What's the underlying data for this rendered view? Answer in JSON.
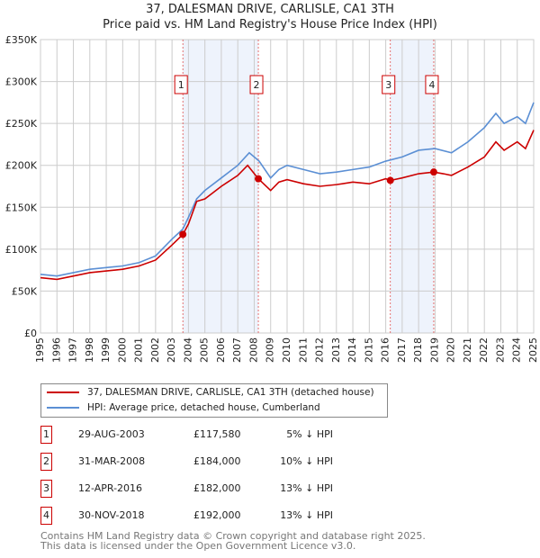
{
  "chart_data": {
    "type": "line",
    "title": "37, DALESMAN DRIVE, CARLISLE, CA1 3TH",
    "subtitle": "Price paid vs. HM Land Registry's House Price Index (HPI)",
    "xlim": [
      1995,
      2025
    ],
    "ylim": [
      0,
      350000
    ],
    "y_ticks": [
      {
        "v": 0,
        "l": "£0"
      },
      {
        "v": 50000,
        "l": "£50K"
      },
      {
        "v": 100000,
        "l": "£100K"
      },
      {
        "v": 150000,
        "l": "£150K"
      },
      {
        "v": 200000,
        "l": "£200K"
      },
      {
        "v": 250000,
        "l": "£250K"
      },
      {
        "v": 300000,
        "l": "£300K"
      },
      {
        "v": 350000,
        "l": "£350K"
      }
    ],
    "x_ticks": [
      "1995",
      "1996",
      "1997",
      "1998",
      "1999",
      "2000",
      "2001",
      "2002",
      "2003",
      "2004",
      "2005",
      "2006",
      "2007",
      "2008",
      "2009",
      "2010",
      "2011",
      "2012",
      "2013",
      "2014",
      "2015",
      "2016",
      "2017",
      "2018",
      "2019",
      "2020",
      "2021",
      "2022",
      "2023",
      "2024",
      "2025"
    ],
    "grid": true,
    "series": [
      {
        "name": "37, DALESMAN DRIVE, CARLISLE, CA1 3TH (detached house)",
        "color": "#cc0000",
        "x": [
          1995,
          1996,
          1997,
          1998,
          1999,
          2000,
          2001,
          2002,
          2003,
          2003.66,
          2004,
          2004.5,
          2005,
          2006,
          2007,
          2007.6,
          2008.25,
          2009,
          2009.5,
          2010,
          2011,
          2012,
          2013,
          2014,
          2015,
          2016,
          2016.28,
          2017,
          2018,
          2018.92,
          2019.5,
          2020,
          2021,
          2022,
          2022.7,
          2023.2,
          2024,
          2024.5,
          2025
        ],
        "y": [
          66000,
          64000,
          68000,
          72000,
          74000,
          76000,
          80000,
          87000,
          105000,
          117580,
          130000,
          157000,
          160000,
          175000,
          188000,
          200000,
          184000,
          170000,
          180000,
          183000,
          178000,
          175000,
          177000,
          180000,
          178000,
          184000,
          182000,
          185000,
          190000,
          192000,
          190000,
          188000,
          198000,
          210000,
          228000,
          218000,
          228000,
          220000,
          242000
        ]
      },
      {
        "name": "HPI: Average price, detached house, Cumberland",
        "color": "#5b8fd4",
        "x": [
          1995,
          1996,
          1997,
          1998,
          1999,
          2000,
          2001,
          2002,
          2003,
          2003.66,
          2004,
          2004.5,
          2005,
          2006,
          2007,
          2007.7,
          2008.3,
          2009,
          2009.5,
          2010,
          2011,
          2012,
          2013,
          2014,
          2015,
          2016,
          2017,
          2018,
          2019,
          2020,
          2021,
          2022,
          2022.7,
          2023.2,
          2024,
          2024.5,
          2025
        ],
        "y": [
          70000,
          68000,
          72000,
          76000,
          78000,
          80000,
          84000,
          92000,
          112000,
          124000,
          138000,
          160000,
          170000,
          185000,
          200000,
          215000,
          205000,
          185000,
          195000,
          200000,
          195000,
          190000,
          192000,
          195000,
          198000,
          205000,
          210000,
          218000,
          220000,
          215000,
          228000,
          245000,
          262000,
          250000,
          258000,
          250000,
          275000
        ]
      }
    ],
    "shaded_ranges": [
      [
        2003.66,
        2008.25
      ],
      [
        2016.28,
        2018.92
      ]
    ],
    "sales": [
      {
        "n": "1",
        "x": 2003.66,
        "y": 117580,
        "date": "29-AUG-2003",
        "price": "£117,580",
        "hpi": "5% ↓ HPI"
      },
      {
        "n": "2",
        "x": 2008.25,
        "y": 184000,
        "date": "31-MAR-2008",
        "price": "£184,000",
        "hpi": "10% ↓ HPI"
      },
      {
        "n": "3",
        "x": 2016.28,
        "y": 182000,
        "date": "12-APR-2016",
        "price": "£182,000",
        "hpi": "13% ↓ HPI"
      },
      {
        "n": "4",
        "x": 2018.92,
        "y": 192000,
        "date": "30-NOV-2018",
        "price": "£192,000",
        "hpi": "13% ↓ HPI"
      }
    ],
    "legend_position": "below"
  },
  "footer": {
    "line1": "Contains HM Land Registry data © Crown copyright and database right 2025.",
    "line2": "This data is licensed under the Open Government Licence v3.0."
  }
}
